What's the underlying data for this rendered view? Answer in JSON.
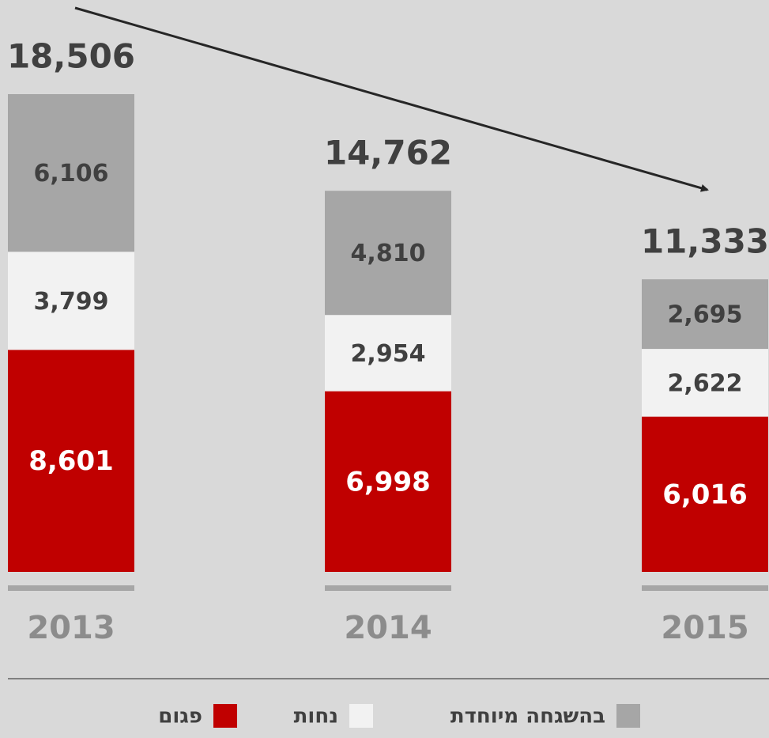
{
  "chart_data": {
    "type": "stacked_bar",
    "categories": [
      "2013",
      "2014",
      "2015"
    ],
    "series": [
      {
        "name": "פגום",
        "color": "#c00000",
        "values": [
          8601,
          6998,
          6016
        ],
        "value_labels": [
          "8,601",
          "6,998",
          "6,016"
        ]
      },
      {
        "name": "נחות",
        "color": "#f2f2f2",
        "values": [
          3799,
          2954,
          2622
        ],
        "value_labels": [
          "3,799",
          "2,954",
          "2,622"
        ]
      },
      {
        "name": "בהשגחה מיוחדת",
        "color": "#a6a6a6",
        "values": [
          6106,
          4810,
          2695
        ],
        "value_labels": [
          "6,106",
          "4,810",
          "2,695"
        ]
      }
    ],
    "totals": [
      18506,
      14762,
      11333
    ],
    "total_labels": [
      "18,506",
      "14,762",
      "11,333"
    ]
  }
}
